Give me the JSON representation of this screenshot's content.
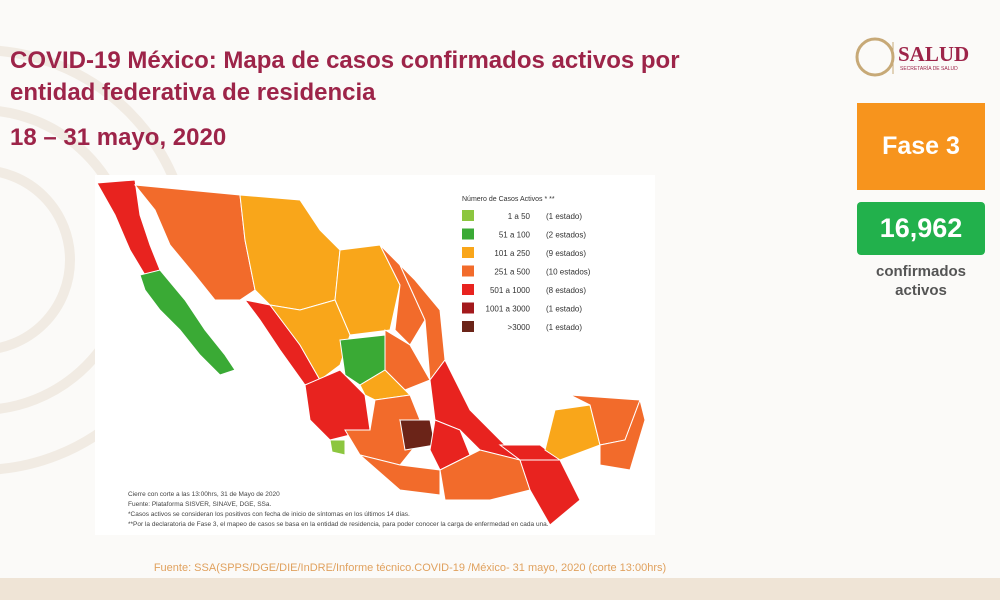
{
  "header": {
    "title_lines": [
      "COVID-19 México: Mapa de casos confirmados activos por",
      "entidad federativa de residencia"
    ],
    "period": "18 – 31 mayo, 2020"
  },
  "logo": {
    "name": "SALUD",
    "subtitle": "SECRETARÍA DE SALUD"
  },
  "phase": "Fase 3",
  "confirmed": {
    "value": "16,962",
    "label_lines": [
      "confirmados",
      "activos"
    ]
  },
  "legend": {
    "title": "Número de Casos Activos * **",
    "items": [
      {
        "color": "#8cc63f",
        "range": "1 a 50",
        "count": "(1 estado)"
      },
      {
        "color": "#3aaa35",
        "range": "51 a 100",
        "count": "(2 estados)"
      },
      {
        "color": "#f9a61a",
        "range": "101 a 250",
        "count": "(9 estados)"
      },
      {
        "color": "#f26b2b",
        "range": "251 a 500",
        "count": "(10 estados)"
      },
      {
        "color": "#e8231f",
        "range": "501 a 1000",
        "count": "(8 estados)"
      },
      {
        "color": "#a3191c",
        "range": "1001 a 3000",
        "count": "(1 estado)"
      },
      {
        "color": "#6b2418",
        "range": ">3000",
        "count": "(1 estado)"
      }
    ]
  },
  "notes": [
    "Cierre con corte a las 13:00hrs, 31 de Mayo de 2020",
    "Fuente: Plataforma SISVER, SINAVE, DGE, SSa.",
    "*Casos activos se consideran los positivos con fecha de inicio de síntomas en los últimos 14 días.",
    "**Por la declaratoria de Fase 3, el mapeo de casos se basa en la entidad de residencia, para poder conocer la carga de enfermedad en cada una."
  ],
  "source": "Fuente: SSA(SPPS/DGE/DIE/InDRE/Informe técnico.COVID-19 /México- 31 mayo, 2020 (corte 13:00hrs)"
}
